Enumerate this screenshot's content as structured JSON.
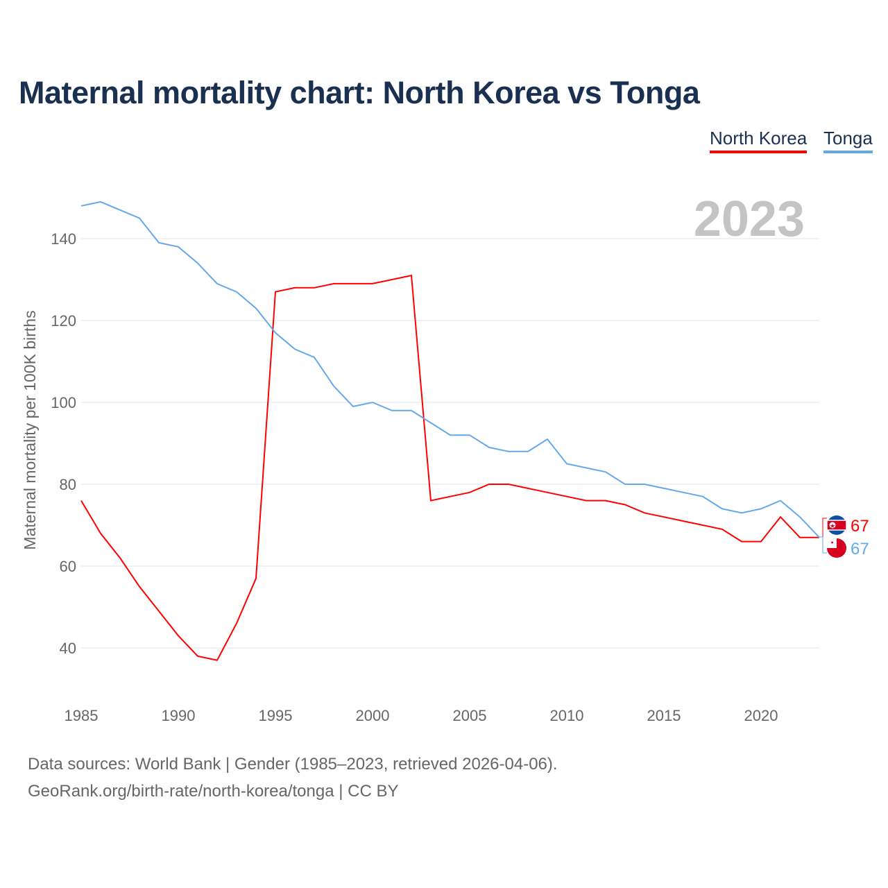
{
  "title": "Maternal mortality chart: North Korea vs Tonga",
  "source_line1": "Data sources: World Bank | Gender (1985–2023, retrieved 2026-04-06).",
  "source_line2": "GeoRank.org/birth-rate/north-korea/tonga | CC BY",
  "chart_data": {
    "type": "line",
    "title": "Maternal mortality chart: North Korea vs Tonga",
    "year_label": "2023",
    "xlabel": "",
    "ylabel": "Maternal mortality per 100K births",
    "xlim": [
      1985,
      2023
    ],
    "ylim": [
      30,
      150
    ],
    "xticks": [
      1985,
      1990,
      1995,
      2000,
      2005,
      2010,
      2015,
      2020
    ],
    "yticks": [
      40,
      60,
      80,
      100,
      120,
      140
    ],
    "grid": true,
    "legend_position": "top-right",
    "x": [
      1985,
      1986,
      1987,
      1988,
      1989,
      1990,
      1991,
      1992,
      1993,
      1994,
      1995,
      1996,
      1997,
      1998,
      1999,
      2000,
      2001,
      2002,
      2003,
      2004,
      2005,
      2006,
      2007,
      2008,
      2009,
      2010,
      2011,
      2012,
      2013,
      2014,
      2015,
      2016,
      2017,
      2018,
      2019,
      2020,
      2021,
      2022,
      2023
    ],
    "series": [
      {
        "name": "North Korea",
        "color": "#ff0000",
        "end_label": "67",
        "values": [
          76,
          68,
          62,
          55,
          49,
          43,
          38,
          37,
          46,
          57,
          127,
          128,
          128,
          129,
          129,
          129,
          130,
          131,
          76,
          77,
          78,
          80,
          80,
          79,
          78,
          77,
          76,
          76,
          75,
          73,
          72,
          71,
          70,
          69,
          66,
          66,
          72,
          67,
          67
        ]
      },
      {
        "name": "Tonga",
        "color": "#64a8ec",
        "end_label": "67",
        "values": [
          148,
          149,
          147,
          145,
          139,
          138,
          134,
          129,
          127,
          123,
          117,
          113,
          111,
          104,
          99,
          100,
          98,
          98,
          95,
          92,
          92,
          89,
          88,
          88,
          91,
          85,
          84,
          83,
          80,
          80,
          79,
          78,
          77,
          74,
          73,
          74,
          76,
          72,
          67
        ]
      }
    ]
  }
}
